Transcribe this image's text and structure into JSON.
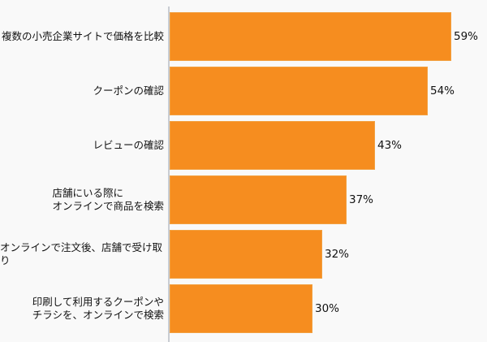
{
  "chart_data": {
    "type": "bar",
    "orientation": "horizontal",
    "title": "",
    "xlabel": "",
    "ylabel": "",
    "categories": [
      "複数の小売企業サイトで価格を比較",
      "クーポンの確認",
      "レビューの確認",
      "店舗にいる際に\nオンラインで商品を検索",
      "オンラインで注文後、店舗で受け取り",
      "印刷して利用するクーポンや\nチラシを、オンラインで検索"
    ],
    "values": [
      59,
      54,
      43,
      37,
      32,
      30
    ],
    "value_labels": [
      "59%",
      "54%",
      "43%",
      "37%",
      "32%",
      "30%"
    ],
    "unit": "%",
    "grid": false,
    "legend": null,
    "bar_color": "#f68d1f",
    "xlim": [
      0,
      60
    ]
  }
}
